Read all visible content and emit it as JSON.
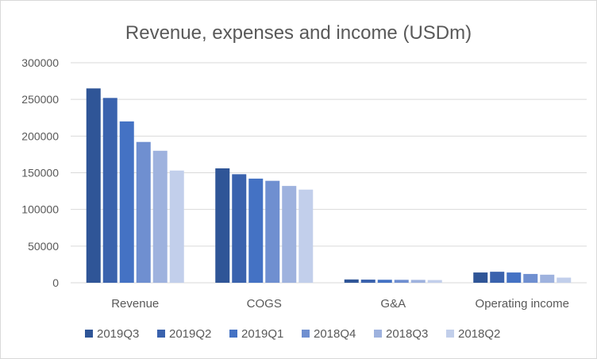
{
  "chart_data": {
    "type": "bar",
    "title": "Revenue, expenses and income (USDm)",
    "xlabel": "",
    "ylabel": "",
    "categories": [
      "Revenue",
      "COGS",
      "G&A",
      "Operating income"
    ],
    "ylim": [
      0,
      300000
    ],
    "yticks": [
      0,
      50000,
      100000,
      150000,
      200000,
      250000,
      300000
    ],
    "grid": true,
    "legend_position": "bottom",
    "series": [
      {
        "name": "2019Q3",
        "color": "#2f5597",
        "values": [
          265000,
          156000,
          4500,
          14000
        ]
      },
      {
        "name": "2019Q2",
        "color": "#3a62ad",
        "values": [
          252000,
          148000,
          4300,
          15000
        ]
      },
      {
        "name": "2019Q1",
        "color": "#4472c4",
        "values": [
          220000,
          142000,
          4100,
          14000
        ]
      },
      {
        "name": "2018Q4",
        "color": "#6f8fd0",
        "values": [
          192000,
          139000,
          4000,
          12000
        ]
      },
      {
        "name": "2018Q3",
        "color": "#9eb2de",
        "values": [
          180000,
          132000,
          3900,
          11000
        ]
      },
      {
        "name": "2018Q2",
        "color": "#c2cfeb",
        "values": [
          153000,
          127000,
          3700,
          7000
        ]
      }
    ]
  }
}
